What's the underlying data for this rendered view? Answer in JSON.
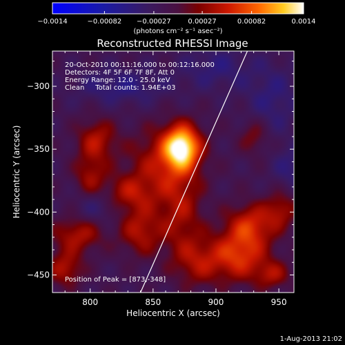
{
  "chart_data": {
    "type": "heatmap",
    "title": "Reconstructed RHESSI Image",
    "xlabel": "Heliocentric X (arcsec)",
    "ylabel": "Heliocentric Y (arcsec)",
    "xlim": [
      770,
      962
    ],
    "ylim": [
      -464,
      -272
    ],
    "x_ticks": [
      800,
      850,
      900,
      950
    ],
    "y_ticks": [
      -300,
      -350,
      -400,
      -450
    ],
    "colorbar": {
      "min": -0.0014,
      "max": 0.0014,
      "ticks": [
        "-0.0014",
        "-0.00082",
        "-0.00027",
        "0.00027",
        "0.00082",
        "0.0014"
      ],
      "label": "(photons cm⁻² s⁻¹ asec⁻²)"
    },
    "info_lines": [
      "20-Oct-2010 00:11:16.000 to 00:12:16.000",
      "Detectors: 4F 5F 6F 7F 8F, Att 0",
      "Energy Range: 12.0 - 25.0 keV",
      "Clean     Total counts: 1.94E+03"
    ],
    "peak_label": "Position of Peak = [873,-348]",
    "peak": [
      873,
      -348
    ],
    "limb_line": [
      [
        840,
        -464
      ],
      [
        925,
        -272
      ]
    ],
    "blobs": [
      {
        "x": 873,
        "y": -348,
        "sx": 10,
        "sy": 12,
        "a": 0.0014
      },
      {
        "x": 858,
        "y": -362,
        "sx": 20,
        "sy": 20,
        "a": 0.0006
      },
      {
        "x": 805,
        "y": -343,
        "sx": 11,
        "sy": 12,
        "a": 0.0006
      },
      {
        "x": 800,
        "y": -372,
        "sx": 9,
        "sy": 12,
        "a": 0.0005
      },
      {
        "x": 830,
        "y": -385,
        "sx": 14,
        "sy": 10,
        "a": 0.0005
      },
      {
        "x": 790,
        "y": -418,
        "sx": 14,
        "sy": 10,
        "a": 0.0006
      },
      {
        "x": 780,
        "y": -445,
        "sx": 10,
        "sy": 10,
        "a": 0.0006
      },
      {
        "x": 840,
        "y": -415,
        "sx": 12,
        "sy": 14,
        "a": 0.0006
      },
      {
        "x": 872,
        "y": -402,
        "sx": 12,
        "sy": 22,
        "a": 0.0005
      },
      {
        "x": 885,
        "y": -440,
        "sx": 14,
        "sy": 14,
        "a": 0.0005
      },
      {
        "x": 928,
        "y": -410,
        "sx": 14,
        "sy": 12,
        "a": 0.0007
      },
      {
        "x": 918,
        "y": -435,
        "sx": 16,
        "sy": 14,
        "a": 0.0008
      },
      {
        "x": 952,
        "y": -398,
        "sx": 9,
        "sy": 10,
        "a": 0.0005
      },
      {
        "x": 945,
        "y": -450,
        "sx": 10,
        "sy": 8,
        "a": 0.0005
      },
      {
        "x": 930,
        "y": -340,
        "sx": 8,
        "sy": 10,
        "a": 0.0004
      },
      {
        "x": 825,
        "y": -300,
        "sx": 25,
        "sy": 10,
        "a": -0.00035
      },
      {
        "x": 900,
        "y": -285,
        "sx": 20,
        "sy": 12,
        "a": -0.0003
      },
      {
        "x": 945,
        "y": -310,
        "sx": 15,
        "sy": 20,
        "a": -0.0003
      },
      {
        "x": 805,
        "y": -395,
        "sx": 12,
        "sy": 10,
        "a": -0.0003
      },
      {
        "x": 960,
        "y": -365,
        "sx": 10,
        "sy": 12,
        "a": -0.0003
      }
    ]
  },
  "footer": {
    "date": "1-Aug-2013 21:02"
  }
}
